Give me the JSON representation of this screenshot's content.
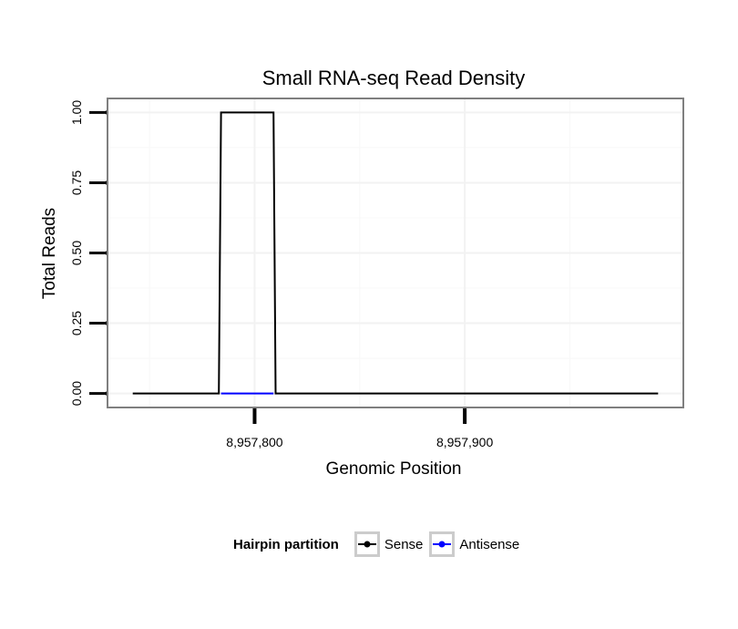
{
  "chart_data": {
    "type": "line",
    "title": "Small RNA-seq Read Density",
    "xlabel": "Genomic Position",
    "ylabel": "Total Reads",
    "xlim": [
      8957730,
      8958004
    ],
    "ylim": [
      -0.05,
      1.05
    ],
    "x_ticks": [
      8957800,
      8957900
    ],
    "x_tick_labels": [
      "8,957,800",
      "8,957,900"
    ],
    "y_ticks": [
      0,
      0.25,
      0.5,
      0.75,
      1.0
    ],
    "y_tick_labels": [
      "0.00",
      "0.25",
      "0.50",
      "0.75",
      "1.00"
    ],
    "grid": true,
    "series": [
      {
        "name": "Sense",
        "color": "#000000",
        "x": [
          8957742,
          8957783,
          8957784,
          8957809,
          8957810,
          8957992
        ],
        "y": [
          0,
          0,
          1,
          1,
          0,
          0
        ]
      },
      {
        "name": "Antisense",
        "color": "#0000ff",
        "x": [
          8957784,
          8957809
        ],
        "y": [
          0,
          0
        ]
      }
    ],
    "legend": {
      "title": "Hairpin partition",
      "position": "bottom",
      "entries": [
        "Sense",
        "Antisense"
      ]
    }
  }
}
